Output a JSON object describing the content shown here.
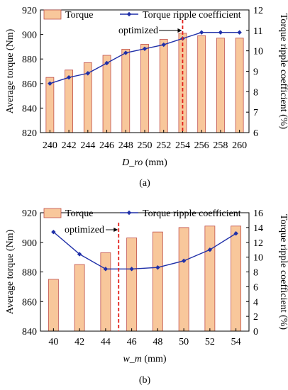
{
  "chart_data": [
    {
      "type": "bar",
      "panel_label": "(a)",
      "categories": [
        "240",
        "242",
        "244",
        "246",
        "248",
        "250",
        "252",
        "254",
        "256",
        "258",
        "260"
      ],
      "xlabel": "D_ro",
      "xlabel_unit": "(mm)",
      "ylabel": "Average torque (Nm)",
      "ylim": [
        820,
        920
      ],
      "yticks": [
        820,
        840,
        860,
        880,
        900,
        920
      ],
      "y2label": "Torque ripple coefficient (%)",
      "y2lim": [
        6,
        12
      ],
      "y2ticks": [
        6,
        7,
        8,
        9,
        10,
        11,
        12
      ],
      "annotation": {
        "text": "optimized",
        "at_category": "254"
      },
      "legend_position": "top",
      "series": [
        {
          "name": "Torque",
          "kind": "bar",
          "axis": "left",
          "color": "#f8c79b",
          "values": [
            865,
            871,
            877,
            883,
            888,
            892,
            896,
            901,
            899,
            897,
            897
          ]
        },
        {
          "name": "Torque ripple coefficient",
          "kind": "line",
          "axis": "right",
          "color": "#1f2fa8",
          "values": [
            8.4,
            8.7,
            8.9,
            9.4,
            9.9,
            10.1,
            10.3,
            10.6,
            10.9,
            10.9,
            10.9
          ]
        }
      ]
    },
    {
      "type": "bar",
      "panel_label": "(b)",
      "categories": [
        "40",
        "42",
        "44",
        "46",
        "48",
        "50",
        "52",
        "54"
      ],
      "xlabel": "w_m",
      "xlabel_unit": "(mm)",
      "ylabel": "Average torque (Nm)",
      "ylim": [
        840,
        920
      ],
      "yticks": [
        840,
        860,
        880,
        900,
        920
      ],
      "y2label": "Torque ripple coefficient (%)",
      "y2lim": [
        0,
        16
      ],
      "y2ticks": [
        0,
        2,
        4,
        6,
        8,
        10,
        12,
        14,
        16
      ],
      "annotation": {
        "text": "optimized",
        "between_categories": [
          "44",
          "46"
        ]
      },
      "legend_position": "top",
      "series": [
        {
          "name": "Torque",
          "kind": "bar",
          "axis": "left",
          "color": "#f8c79b",
          "values": [
            875,
            885,
            893,
            903,
            907,
            910,
            911,
            911
          ]
        },
        {
          "name": "Torque ripple coefficient",
          "kind": "line",
          "axis": "right",
          "color": "#1f2fa8",
          "values": [
            13.4,
            10.4,
            8.4,
            8.4,
            8.6,
            9.5,
            11.0,
            13.2
          ]
        }
      ]
    }
  ]
}
